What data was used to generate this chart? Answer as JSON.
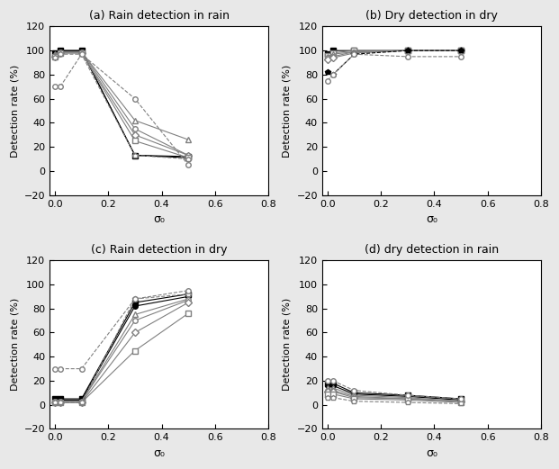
{
  "x_values": [
    0.0,
    0.02,
    0.1,
    0.3,
    0.5
  ],
  "titles": [
    "(a) Rain detection in rain",
    "(b) Dry detection in dry",
    "(c) Rain detection in dry",
    "(d) dry detection in rain"
  ],
  "subplot_a": {
    "lines": [
      {
        "y": [
          98,
          100,
          100,
          13,
          12
        ],
        "marker": "s",
        "fillstyle": "full",
        "color": "black",
        "linestyle": "-"
      },
      {
        "y": [
          98,
          100,
          100,
          13,
          11
        ],
        "marker": "o",
        "fillstyle": "full",
        "color": "black",
        "linestyle": "-"
      },
      {
        "y": [
          97,
          99,
          99,
          42,
          26
        ],
        "marker": "^",
        "fillstyle": "none",
        "color": "gray",
        "linestyle": "-"
      },
      {
        "y": [
          96,
          99,
          99,
          35,
          13
        ],
        "marker": "o",
        "fillstyle": "none",
        "color": "gray",
        "linestyle": "-"
      },
      {
        "y": [
          95,
          98,
          98,
          30,
          13
        ],
        "marker": "D",
        "fillstyle": "none",
        "color": "gray",
        "linestyle": "-"
      },
      {
        "y": [
          95,
          98,
          98,
          25,
          11
        ],
        "marker": "s",
        "fillstyle": "none",
        "color": "gray",
        "linestyle": "-"
      },
      {
        "y": [
          94,
          97,
          97,
          13,
          10
        ],
        "marker": "p",
        "fillstyle": "none",
        "color": "gray",
        "linestyle": "--"
      },
      {
        "y": [
          70,
          70,
          97,
          60,
          5
        ],
        "marker": "o",
        "fillstyle": "none",
        "color": "gray",
        "linestyle": "--"
      }
    ]
  },
  "subplot_b": {
    "lines": [
      {
        "y": [
          97,
          100,
          100,
          100,
          100
        ],
        "marker": "s",
        "fillstyle": "full",
        "color": "black",
        "linestyle": "-"
      },
      {
        "y": [
          96,
          98,
          100,
          100,
          100
        ],
        "marker": "s",
        "fillstyle": "none",
        "color": "gray",
        "linestyle": "-"
      },
      {
        "y": [
          95,
          97,
          99,
          100,
          100
        ],
        "marker": "^",
        "fillstyle": "none",
        "color": "gray",
        "linestyle": "-"
      },
      {
        "y": [
          94,
          95,
          99,
          100,
          100
        ],
        "marker": "o",
        "fillstyle": "none",
        "color": "gray",
        "linestyle": "-"
      },
      {
        "y": [
          93,
          94,
          98,
          100,
          100
        ],
        "marker": "D",
        "fillstyle": "none",
        "color": "gray",
        "linestyle": "-"
      },
      {
        "y": [
          82,
          80,
          97,
          100,
          100
        ],
        "marker": "p",
        "fillstyle": "full",
        "color": "black",
        "linestyle": "--"
      },
      {
        "y": [
          75,
          80,
          97,
          95,
          95
        ],
        "marker": "o",
        "fillstyle": "none",
        "color": "gray",
        "linestyle": "--"
      }
    ]
  },
  "subplot_c": {
    "lines": [
      {
        "y": [
          5,
          5,
          5,
          85,
          92
        ],
        "marker": "s",
        "fillstyle": "full",
        "color": "black",
        "linestyle": "-"
      },
      {
        "y": [
          4,
          4,
          4,
          82,
          90
        ],
        "marker": "o",
        "fillstyle": "full",
        "color": "black",
        "linestyle": "-"
      },
      {
        "y": [
          3,
          3,
          3,
          75,
          88
        ],
        "marker": "^",
        "fillstyle": "none",
        "color": "gray",
        "linestyle": "-"
      },
      {
        "y": [
          3,
          3,
          3,
          70,
          87
        ],
        "marker": "o",
        "fillstyle": "none",
        "color": "gray",
        "linestyle": "-"
      },
      {
        "y": [
          2,
          2,
          2,
          60,
          85
        ],
        "marker": "D",
        "fillstyle": "none",
        "color": "gray",
        "linestyle": "-"
      },
      {
        "y": [
          2,
          2,
          2,
          45,
          76
        ],
        "marker": "s",
        "fillstyle": "none",
        "color": "gray",
        "linestyle": "-"
      },
      {
        "y": [
          2,
          2,
          2,
          88,
          92
        ],
        "marker": "p",
        "fillstyle": "none",
        "color": "gray",
        "linestyle": "--"
      },
      {
        "y": [
          30,
          30,
          30,
          88,
          95
        ],
        "marker": "o",
        "fillstyle": "none",
        "color": "gray",
        "linestyle": "--"
      }
    ]
  },
  "subplot_d": {
    "lines": [
      {
        "y": [
          18,
          18,
          10,
          8,
          5
        ],
        "marker": "s",
        "fillstyle": "full",
        "color": "black",
        "linestyle": "-"
      },
      {
        "y": [
          16,
          16,
          9,
          7,
          4
        ],
        "marker": "o",
        "fillstyle": "full",
        "color": "black",
        "linestyle": "-"
      },
      {
        "y": [
          14,
          14,
          8,
          6,
          3
        ],
        "marker": "^",
        "fillstyle": "none",
        "color": "gray",
        "linestyle": "-"
      },
      {
        "y": [
          12,
          12,
          7,
          5,
          3
        ],
        "marker": "o",
        "fillstyle": "none",
        "color": "gray",
        "linestyle": "-"
      },
      {
        "y": [
          11,
          11,
          6,
          5,
          3
        ],
        "marker": "D",
        "fillstyle": "none",
        "color": "gray",
        "linestyle": "-"
      },
      {
        "y": [
          9,
          9,
          5,
          4,
          2
        ],
        "marker": "s",
        "fillstyle": "none",
        "color": "gray",
        "linestyle": "-"
      },
      {
        "y": [
          6,
          6,
          3,
          2,
          1
        ],
        "marker": "p",
        "fillstyle": "none",
        "color": "gray",
        "linestyle": "--"
      },
      {
        "y": [
          20,
          20,
          12,
          8,
          5
        ],
        "marker": "o",
        "fillstyle": "none",
        "color": "gray",
        "linestyle": "--"
      }
    ]
  },
  "xlabel": "σ₀",
  "ylabel": "Detection rate (%)",
  "xlim": [
    -0.02,
    0.8
  ],
  "ylim": [
    -20,
    120
  ],
  "xticks": [
    0.0,
    0.2,
    0.4,
    0.6,
    0.8
  ],
  "yticks": [
    -20,
    0,
    20,
    40,
    60,
    80,
    100,
    120
  ],
  "fig_bg": "#e8e8e8"
}
